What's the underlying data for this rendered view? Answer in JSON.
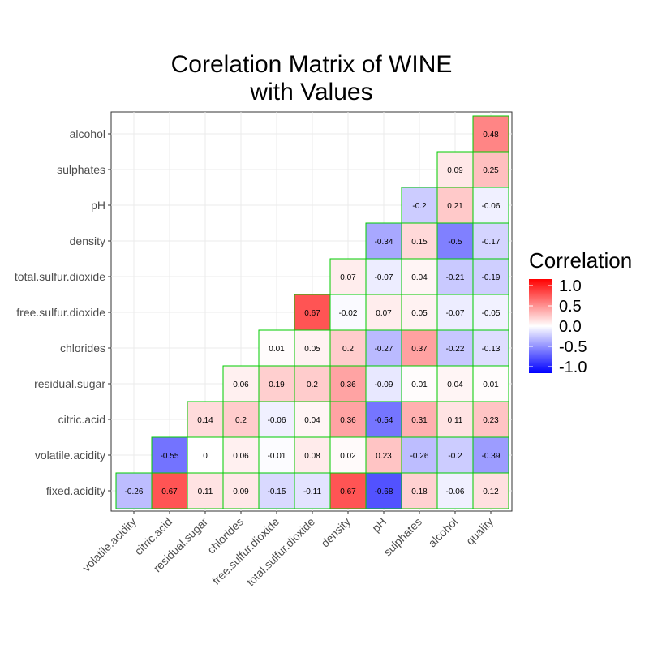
{
  "chart_data": {
    "type": "heatmap",
    "title_lines": [
      "Corelation Matrix of WINE",
      "with Values"
    ],
    "x_categories": [
      "volatile.acidity",
      "citric.acid",
      "residual.sugar",
      "chlorides",
      "free.sulfur.dioxide",
      "total.sulfur.dioxide",
      "density",
      "pH",
      "sulphates",
      "alcohol",
      "quality"
    ],
    "y_categories": [
      "fixed.acidity",
      "volatile.acidity",
      "citric.acid",
      "residual.sugar",
      "chlorides",
      "free.sulfur.dioxide",
      "total.sulfur.dioxide",
      "density",
      "pH",
      "sulphates",
      "alcohol"
    ],
    "values": [
      [
        -0.26,
        0.67,
        0.11,
        0.09,
        -0.15,
        -0.11,
        0.67,
        -0.68,
        0.18,
        -0.06,
        0.12
      ],
      [
        null,
        -0.55,
        0,
        0.06,
        -0.01,
        0.08,
        0.02,
        0.23,
        -0.26,
        -0.2,
        -0.39
      ],
      [
        null,
        null,
        0.14,
        0.2,
        -0.06,
        0.04,
        0.36,
        -0.54,
        0.31,
        0.11,
        0.23
      ],
      [
        null,
        null,
        null,
        0.06,
        0.19,
        0.2,
        0.36,
        -0.09,
        0.01,
        0.04,
        0.01
      ],
      [
        null,
        null,
        null,
        null,
        0.01,
        0.05,
        0.2,
        -0.27,
        0.37,
        -0.22,
        -0.13
      ],
      [
        null,
        null,
        null,
        null,
        null,
        0.67,
        -0.02,
        0.07,
        0.05,
        -0.07,
        -0.05
      ],
      [
        null,
        null,
        null,
        null,
        null,
        null,
        0.07,
        -0.07,
        0.04,
        -0.21,
        -0.19
      ],
      [
        null,
        null,
        null,
        null,
        null,
        null,
        null,
        -0.34,
        0.15,
        -0.5,
        -0.17
      ],
      [
        null,
        null,
        null,
        null,
        null,
        null,
        null,
        null,
        -0.2,
        0.21,
        -0.06
      ],
      [
        null,
        null,
        null,
        null,
        null,
        null,
        null,
        null,
        null,
        0.09,
        0.25
      ],
      [
        null,
        null,
        null,
        null,
        null,
        null,
        null,
        null,
        null,
        null,
        0.48
      ]
    ],
    "color_scale": {
      "low": "#0000ff",
      "mid": "#ffffff",
      "high": "#ff0000",
      "limits": [
        -1,
        1
      ]
    },
    "cell_border_color": "#00cc00",
    "legend": {
      "title": "Correlation",
      "ticks": [
        "1.0",
        "0.5",
        "0.0",
        "-0.5",
        "-1.0"
      ],
      "tick_values": [
        1.0,
        0.5,
        0.0,
        -0.5,
        -1.0
      ],
      "placement": "right"
    },
    "grid": true
  }
}
